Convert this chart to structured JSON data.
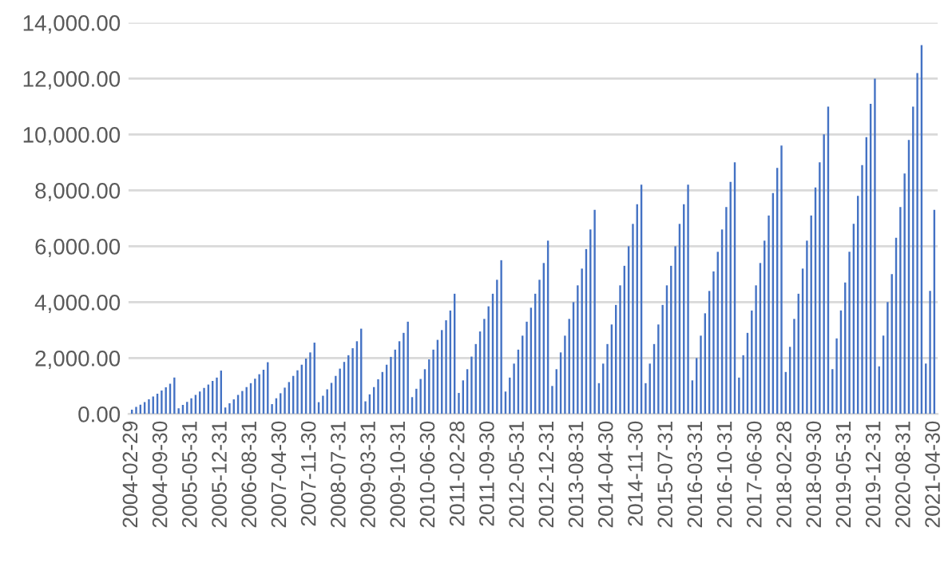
{
  "chart_data": {
    "type": "bar",
    "categories": [
      "2004-02-29",
      null,
      null,
      null,
      null,
      null,
      null,
      "2004-09-30",
      null,
      null,
      null,
      null,
      null,
      null,
      "2005-05-31",
      null,
      null,
      null,
      null,
      null,
      null,
      "2005-12-31",
      null,
      null,
      null,
      null,
      null,
      null,
      "2006-08-31",
      null,
      null,
      null,
      null,
      null,
      null,
      "2007-04-30",
      null,
      null,
      null,
      null,
      null,
      null,
      "2007-11-30",
      null,
      null,
      null,
      null,
      null,
      null,
      "2008-07-31",
      null,
      null,
      null,
      null,
      null,
      null,
      "2009-03-31",
      null,
      null,
      null,
      null,
      null,
      null,
      "2009-10-31",
      null,
      null,
      null,
      null,
      null,
      null,
      "2010-06-30",
      null,
      null,
      null,
      null,
      null,
      null,
      "2011-02-28",
      null,
      null,
      null,
      null,
      null,
      null,
      "2011-09-30",
      null,
      null,
      null,
      null,
      null,
      null,
      "2012-05-31",
      null,
      null,
      null,
      null,
      null,
      null,
      "2012-12-31",
      null,
      null,
      null,
      null,
      null,
      null,
      "2013-08-31",
      null,
      null,
      null,
      null,
      null,
      null,
      "2014-04-30",
      null,
      null,
      null,
      null,
      null,
      null,
      "2014-11-30",
      null,
      null,
      null,
      null,
      null,
      null,
      "2015-07-31",
      null,
      null,
      null,
      null,
      null,
      null,
      "2016-03-31",
      null,
      null,
      null,
      null,
      null,
      null,
      "2016-10-31",
      null,
      null,
      null,
      null,
      null,
      null,
      "2017-06-30",
      null,
      null,
      null,
      null,
      null,
      null,
      "2018-02-28",
      null,
      null,
      null,
      null,
      null,
      null,
      "2018-09-30",
      null,
      null,
      null,
      null,
      null,
      null,
      "2019-05-31",
      null,
      null,
      null,
      null,
      null,
      null,
      "2019-12-31",
      null,
      null,
      null,
      null,
      null,
      null,
      "2020-08-31",
      null,
      null,
      null,
      null,
      null,
      null,
      "2021-04-30"
    ],
    "values": [
      150,
      250,
      330,
      420,
      520,
      620,
      720,
      840,
      950,
      1080,
      1300,
      200,
      320,
      430,
      560,
      680,
      800,
      930,
      1050,
      1180,
      1300,
      1550,
      230,
      380,
      520,
      680,
      820,
      960,
      1100,
      1260,
      1420,
      1580,
      1850,
      350,
      560,
      740,
      940,
      1140,
      1360,
      1560,
      1760,
      1980,
      2200,
      2550,
      420,
      650,
      880,
      1110,
      1360,
      1620,
      1860,
      2100,
      2350,
      2600,
      3050,
      450,
      700,
      960,
      1240,
      1500,
      1760,
      2040,
      2300,
      2600,
      2900,
      3300,
      600,
      900,
      1250,
      1600,
      1950,
      2300,
      2650,
      3000,
      3350,
      3700,
      4300,
      750,
      1200,
      1600,
      2050,
      2500,
      2950,
      3400,
      3850,
      4300,
      4800,
      5500,
      800,
      1300,
      1800,
      2300,
      2800,
      3300,
      3800,
      4300,
      4800,
      5400,
      6200,
      1000,
      1600,
      2200,
      2800,
      3400,
      4000,
      4600,
      5200,
      5900,
      6600,
      7300,
      1100,
      1800,
      2500,
      3200,
      3900,
      4600,
      5300,
      6000,
      6800,
      7500,
      8200,
      1100,
      1800,
      2500,
      3200,
      3900,
      4600,
      5300,
      6000,
      6800,
      7500,
      8200,
      1200,
      2000,
      2800,
      3600,
      4400,
      5100,
      5800,
      6600,
      7400,
      8300,
      9000,
      1300,
      2100,
      2900,
      3700,
      4600,
      5400,
      6200,
      7100,
      7900,
      8800,
      9600,
      1500,
      2400,
      3400,
      4300,
      5200,
      6200,
      7100,
      8100,
      9000,
      10000,
      11000,
      1600,
      2700,
      3700,
      4700,
      5800,
      6800,
      7800,
      8900,
      9900,
      11100,
      12000,
      1700,
      2800,
      4000,
      5000,
      6300,
      7400,
      8600,
      9800,
      11000,
      12200,
      13200,
      1800,
      4400,
      7300
    ],
    "color": "#4472c4",
    "ylim": [
      0,
      14000
    ],
    "yticks": [
      {
        "value": 0,
        "label": "0.00"
      },
      {
        "value": 2000,
        "label": "2,000.00"
      },
      {
        "value": 4000,
        "label": "4,000.00"
      },
      {
        "value": 6000,
        "label": "6,000.00"
      },
      {
        "value": 8000,
        "label": "8,000.00"
      },
      {
        "value": 10000,
        "label": "10,000.00"
      },
      {
        "value": 12000,
        "label": "12,000.00"
      },
      {
        "value": 14000,
        "label": "14,000.00"
      }
    ],
    "grid": "y",
    "legend": false
  }
}
